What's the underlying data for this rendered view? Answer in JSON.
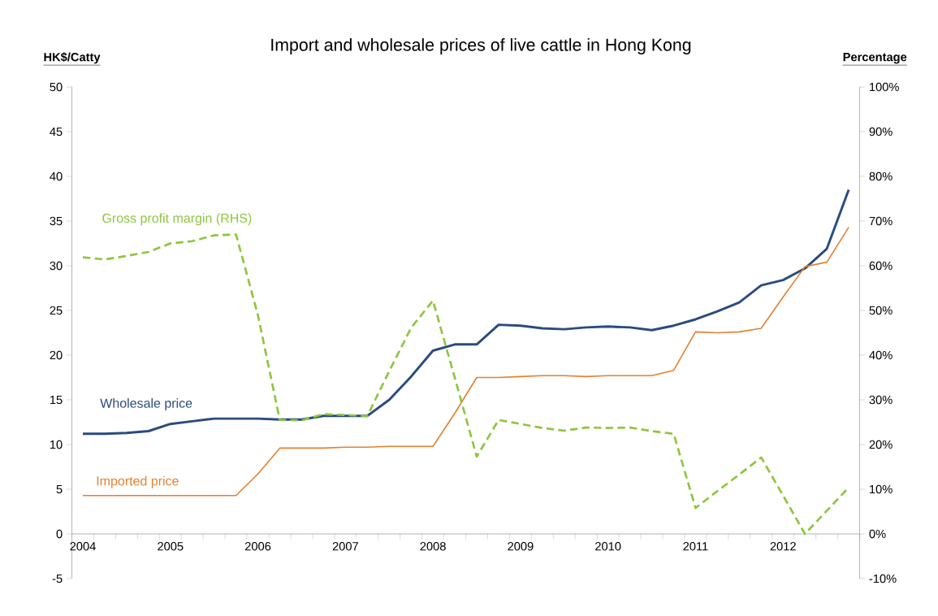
{
  "chart_data": {
    "type": "line",
    "title": "Import and wholesale prices of live cattle in Hong Kong",
    "ylabel": "HK$/Catty",
    "y2label": "Percentage",
    "categories": [
      "2004",
      null,
      null,
      null,
      "2005",
      null,
      null,
      null,
      "2006",
      null,
      null,
      null,
      "2007",
      null,
      null,
      null,
      "2008",
      null,
      null,
      null,
      "2009",
      null,
      null,
      null,
      "2010",
      null,
      null,
      null,
      "2011",
      null,
      null,
      null,
      "2012",
      null,
      null,
      null
    ],
    "series": [
      {
        "name": "Wholesale price",
        "color": "#2b4b7e",
        "values": [
          11.2,
          11.2,
          11.3,
          11.5,
          12.3,
          12.6,
          12.9,
          12.9,
          12.9,
          12.8,
          12.8,
          13.2,
          13.2,
          13.2,
          15.0,
          17.6,
          20.5,
          21.2,
          21.2,
          23.4,
          23.3,
          23.0,
          22.9,
          23.1,
          23.2,
          23.1,
          22.8,
          23.3,
          24.0,
          24.9,
          25.9,
          27.8,
          28.4,
          29.7,
          31.9,
          38.5
        ]
      },
      {
        "name": "Imported price",
        "color": "#e3802f",
        "values": [
          4.3,
          4.3,
          4.3,
          4.3,
          4.3,
          4.3,
          4.3,
          4.3,
          6.7,
          9.6,
          9.6,
          9.6,
          9.7,
          9.7,
          9.8,
          9.8,
          9.8,
          13.5,
          17.5,
          17.5,
          17.6,
          17.7,
          17.7,
          17.6,
          17.7,
          17.7,
          17.7,
          18.3,
          22.6,
          22.5,
          22.6,
          23.0,
          26.5,
          29.9,
          30.4,
          34.3
        ]
      },
      {
        "name": "Gross profit margin (RHS)",
        "color": "#8cc63f",
        "axis": "y2",
        "line_style": "dashed",
        "values": [
          61.9,
          61.4,
          62.2,
          63.1,
          65.0,
          65.5,
          66.8,
          67.0,
          49,
          25.5,
          25.4,
          26.8,
          26.6,
          26.4,
          36.4,
          46.1,
          52.2,
          34.9,
          17.3,
          25.5,
          24.6,
          23.7,
          23.1,
          23.8,
          23.7,
          23.8,
          23.0,
          22.4,
          5.8,
          9.6,
          13.3,
          17.1,
          8.6,
          0,
          5.2,
          10.4
        ]
      }
    ],
    "ylim": [
      -5,
      50
    ],
    "yticks": [
      -5,
      0,
      5,
      10,
      15,
      20,
      25,
      30,
      35,
      40,
      45,
      50
    ],
    "y2lim": [
      -10,
      100
    ],
    "y2ticks": [
      {
        "value": -10,
        "label": "-10%"
      },
      {
        "value": 0,
        "label": "0%"
      },
      {
        "value": 10,
        "label": "10%"
      },
      {
        "value": 20,
        "label": "20%"
      },
      {
        "value": 30,
        "label": "30%"
      },
      {
        "value": 40,
        "label": "40%"
      },
      {
        "value": 50,
        "label": "50%"
      },
      {
        "value": 60,
        "label": "60%"
      },
      {
        "value": 70,
        "label": "70%"
      },
      {
        "value": 80,
        "label": "80%"
      },
      {
        "value": 90,
        "label": "90%"
      },
      {
        "value": 100,
        "label": "100%"
      }
    ],
    "grid": false,
    "legend": false
  }
}
